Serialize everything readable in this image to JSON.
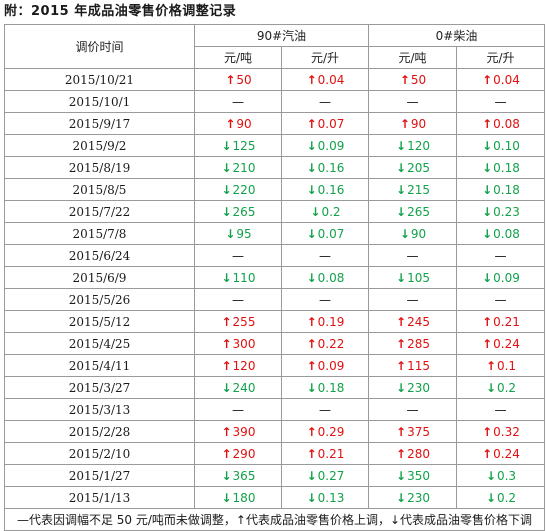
{
  "title": "附：2015 年成品油零售价格调整记录",
  "headers": {
    "date": "调价时间",
    "gas": "90#汽油",
    "diesel": "0#柴油",
    "unit_ton": "元/吨",
    "unit_liter": "元/升"
  },
  "symbols": {
    "up": "↑",
    "down": "↓",
    "none": "—"
  },
  "colors": {
    "up": "#e01010",
    "down": "#12a24a",
    "none": "#111111"
  },
  "rows": [
    {
      "date": "2015/10/21",
      "dir": "up",
      "gas_ton": "50",
      "gas_l": "0.04",
      "dsl_ton": "50",
      "dsl_l": "0.04"
    },
    {
      "date": "2015/10/1",
      "dir": "none",
      "gas_ton": "",
      "gas_l": "",
      "dsl_ton": "",
      "dsl_l": ""
    },
    {
      "date": "2015/9/17",
      "dir": "up",
      "gas_ton": "90",
      "gas_l": "0.07",
      "dsl_ton": "90",
      "dsl_l": "0.08"
    },
    {
      "date": "2015/9/2",
      "dir": "down",
      "gas_ton": "125",
      "gas_l": "0.09",
      "dsl_ton": "120",
      "dsl_l": "0.10"
    },
    {
      "date": "2015/8/19",
      "dir": "down",
      "gas_ton": "210",
      "gas_l": "0.16",
      "dsl_ton": "205",
      "dsl_l": "0.18"
    },
    {
      "date": "2015/8/5",
      "dir": "down",
      "gas_ton": "220",
      "gas_l": "0.16",
      "dsl_ton": "215",
      "dsl_l": "0.18"
    },
    {
      "date": "2015/7/22",
      "dir": "down",
      "gas_ton": "265",
      "gas_l": "0.2",
      "dsl_ton": "265",
      "dsl_l": "0.23"
    },
    {
      "date": "2015/7/8",
      "dir": "down",
      "gas_ton": "95",
      "gas_l": "0.07",
      "dsl_ton": "90",
      "dsl_l": "0.08"
    },
    {
      "date": "2015/6/24",
      "dir": "none",
      "gas_ton": "",
      "gas_l": "",
      "dsl_ton": "",
      "dsl_l": ""
    },
    {
      "date": "2015/6/9",
      "dir": "down",
      "gas_ton": "110",
      "gas_l": "0.08",
      "dsl_ton": "105",
      "dsl_l": "0.09"
    },
    {
      "date": "2015/5/26",
      "dir": "none",
      "gas_ton": "",
      "gas_l": "",
      "dsl_ton": "",
      "dsl_l": ""
    },
    {
      "date": "2015/5/12",
      "dir": "up",
      "gas_ton": "255",
      "gas_l": "0.19",
      "dsl_ton": "245",
      "dsl_l": "0.21"
    },
    {
      "date": "2015/4/25",
      "dir": "up",
      "gas_ton": "300",
      "gas_l": "0.22",
      "dsl_ton": "285",
      "dsl_l": "0.24"
    },
    {
      "date": "2015/4/11",
      "dir": "up",
      "gas_ton": "120",
      "gas_l": "0.09",
      "dsl_ton": "115",
      "dsl_l": "0.1"
    },
    {
      "date": "2015/3/27",
      "dir": "down",
      "gas_ton": "240",
      "gas_l": "0.18",
      "dsl_ton": "230",
      "dsl_l": "0.2"
    },
    {
      "date": "2015/3/13",
      "dir": "none",
      "gas_ton": "",
      "gas_l": "",
      "dsl_ton": "",
      "dsl_l": ""
    },
    {
      "date": "2015/2/28",
      "dir": "up",
      "gas_ton": "390",
      "gas_l": "0.29",
      "dsl_ton": "375",
      "dsl_l": "0.32"
    },
    {
      "date": "2015/2/10",
      "dir": "up",
      "gas_ton": "290",
      "gas_l": "0.21",
      "dsl_ton": "280",
      "dsl_l": "0.24"
    },
    {
      "date": "2015/1/27",
      "dir": "down",
      "gas_ton": "365",
      "gas_l": "0.27",
      "dsl_ton": "350",
      "dsl_l": "0.3"
    },
    {
      "date": "2015/1/13",
      "dir": "down",
      "gas_ton": "180",
      "gas_l": "0.13",
      "dsl_ton": "230",
      "dsl_l": "0.2"
    }
  ],
  "footnote": "—代表因调幅不足 50 元/吨而未做调整，↑代表成品油零售价格上调，↓代表成品油零售价格下调"
}
